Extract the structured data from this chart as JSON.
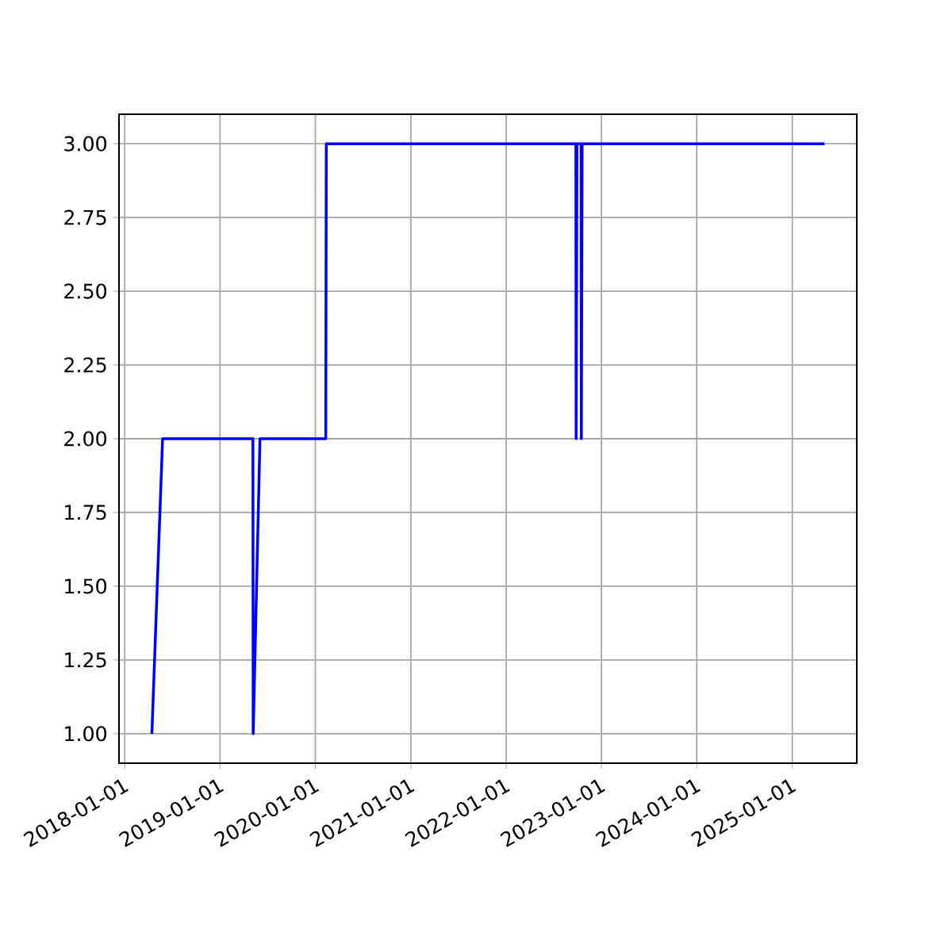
{
  "chart_data": {
    "type": "line",
    "color": "#0000ff",
    "marker": "none",
    "grid": true,
    "x": [
      "2018-04-15",
      "2018-05-26",
      "2019-05-07",
      "2019-05-08",
      "2019-06-03",
      "2020-02-10",
      "2020-02-12",
      "2022-09-25",
      "2022-09-26",
      "2022-09-29",
      "2022-10-15",
      "2022-10-16",
      "2022-10-19",
      "2025-05-04"
    ],
    "values": [
      1,
      2,
      2,
      1,
      2,
      2,
      3,
      3,
      2,
      3,
      3,
      2,
      3,
      3
    ],
    "xlim": [
      "2017-12-10",
      "2025-09-05"
    ],
    "ylim": [
      0.9,
      3.1
    ],
    "xticks": [
      "2018-01-01",
      "2019-01-01",
      "2020-01-01",
      "2021-01-01",
      "2022-01-01",
      "2023-01-01",
      "2024-01-01",
      "2025-01-01"
    ],
    "yticks": [
      {
        "value": 1,
        "label": "1.00"
      },
      {
        "value": 1.25,
        "label": "1.25"
      },
      {
        "value": 1.5,
        "label": "1.50"
      },
      {
        "value": 1.75,
        "label": "1.75"
      },
      {
        "value": 2,
        "label": "2.00"
      },
      {
        "value": 2.25,
        "label": "2.25"
      },
      {
        "value": 2.5,
        "label": "2.50"
      },
      {
        "value": 2.75,
        "label": "2.75"
      },
      {
        "value": 3,
        "label": "3.00"
      }
    ]
  }
}
